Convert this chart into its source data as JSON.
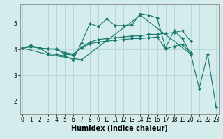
{
  "xlabel": "Humidex (Indice chaleur)",
  "bg_color": "#d4ecec",
  "grid_color": "#b8d8d8",
  "line_color": "#1a7a6e",
  "line1_x": [
    0,
    1,
    2,
    3,
    4,
    5,
    6,
    7,
    8,
    9,
    10,
    11,
    12,
    13,
    14,
    15,
    16,
    17,
    18,
    19,
    20
  ],
  "line1_y": [
    4.05,
    4.15,
    4.05,
    3.85,
    3.8,
    3.75,
    3.6,
    4.25,
    5.0,
    4.88,
    5.18,
    4.92,
    4.92,
    4.95,
    5.38,
    5.32,
    5.22,
    4.05,
    4.72,
    4.42,
    3.82
  ],
  "line2_x": [
    0,
    1,
    2,
    3,
    4,
    5,
    6,
    7,
    8,
    9,
    10,
    11,
    12,
    13,
    14,
    15,
    16,
    17,
    18,
    19,
    20
  ],
  "line2_y": [
    4.05,
    4.12,
    4.05,
    4.02,
    4.02,
    3.82,
    3.78,
    4.08,
    4.28,
    4.38,
    4.42,
    4.45,
    4.48,
    4.52,
    4.52,
    4.58,
    4.58,
    4.62,
    4.65,
    4.72,
    4.32
  ],
  "line3_x": [
    0,
    1,
    2,
    3,
    4,
    5,
    6,
    7,
    8,
    9,
    10,
    11,
    12,
    13,
    14,
    15,
    16,
    17,
    18,
    19,
    20
  ],
  "line3_y": [
    4.05,
    4.1,
    4.05,
    4.02,
    4.0,
    3.88,
    3.82,
    4.05,
    4.22,
    4.28,
    4.32,
    4.35,
    4.38,
    4.42,
    4.42,
    4.45,
    4.48,
    4.02,
    4.12,
    4.18,
    3.88
  ],
  "line4_x": [
    0,
    3,
    7,
    14,
    20,
    21,
    22,
    23
  ],
  "line4_y": [
    4.05,
    3.8,
    3.6,
    5.32,
    3.82,
    2.48,
    3.82,
    1.78
  ],
  "ylim": [
    1.5,
    5.75
  ],
  "xlim": [
    -0.3,
    23.3
  ],
  "yticks": [
    2,
    3,
    4,
    5
  ],
  "xticks": [
    0,
    1,
    2,
    3,
    4,
    5,
    6,
    7,
    8,
    9,
    10,
    11,
    12,
    13,
    14,
    15,
    16,
    17,
    18,
    19,
    20,
    21,
    22,
    23
  ],
  "tick_fontsize": 5.5,
  "xlabel_fontsize": 7
}
